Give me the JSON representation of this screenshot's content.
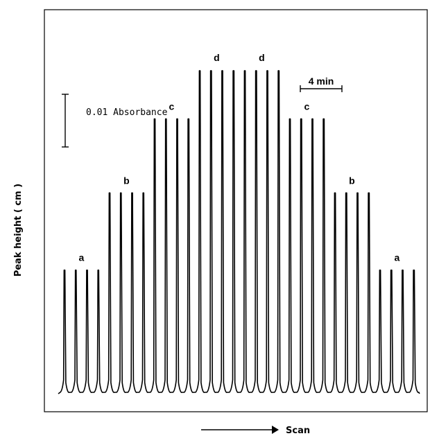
{
  "chart_data": {
    "type": "line",
    "title": "",
    "ylabel": "Peak height ( cm )",
    "xlabel": "Scan",
    "annotations": {
      "absorbance_scale": "0.01 Absorbance",
      "time_scale": "4 min"
    },
    "ylim": [
      0,
      1
    ],
    "groups": [
      {
        "label": "a",
        "peaks": [
          0.38,
          0.38,
          0.38,
          0.38
        ]
      },
      {
        "label": "b",
        "peaks": [
          0.62,
          0.62,
          0.62,
          0.62
        ]
      },
      {
        "label": "c",
        "peaks": [
          0.85,
          0.85,
          0.85,
          0.85
        ]
      },
      {
        "label": "d",
        "peaks": [
          1.0,
          1.0,
          1.0,
          1.0
        ]
      },
      {
        "label": "d",
        "peaks": [
          1.0,
          1.0,
          1.0,
          1.0
        ]
      },
      {
        "label": "c",
        "peaks": [
          0.85,
          0.85,
          0.85,
          0.85
        ]
      },
      {
        "label": "b",
        "peaks": [
          0.62,
          0.62,
          0.62,
          0.62
        ]
      },
      {
        "label": "a",
        "peaks": [
          0.38,
          0.38,
          0.38,
          0.38
        ]
      }
    ]
  }
}
